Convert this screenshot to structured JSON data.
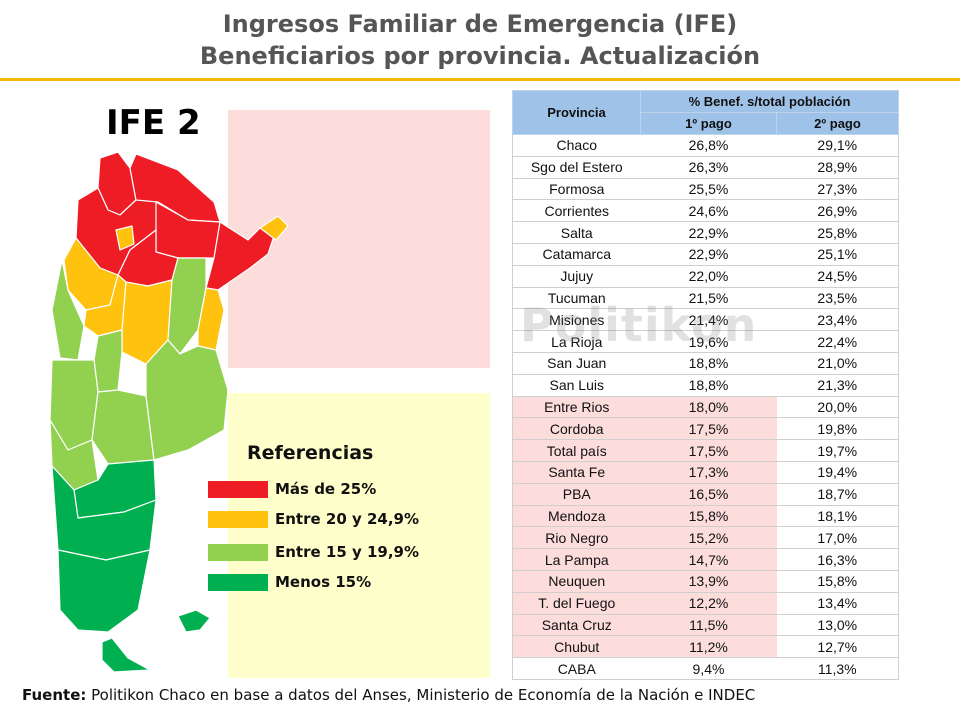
{
  "title": {
    "line1": "Ingresos Familiar de Emergencia (IFE)",
    "line2": "Beneficiarios por provincia. Actualización"
  },
  "map": {
    "label": "IFE 2"
  },
  "watermark": "Politikon",
  "legend": {
    "title": "Referencias",
    "items": [
      {
        "label": "Más de 25%",
        "color": "#ee1c24"
      },
      {
        "label": "Entre 20 y 24,9%",
        "color": "#ffc20e"
      },
      {
        "label": "Entre 15 y 19,9%",
        "color": "#92d050"
      },
      {
        "label": "Menos 15%",
        "color": "#00b050"
      }
    ]
  },
  "colors": {
    "accent_rule": "#f5b800",
    "header_fill": "#9fc3e8",
    "highlight": "#fddcdc"
  },
  "chart_data": {
    "type": "table",
    "columns": {
      "province": "Provincia",
      "group": "% Benef. s/total población",
      "pay1": "1º pago",
      "pay2": "2º pago"
    },
    "rows": [
      {
        "province": "Chaco",
        "pay1": "26,8%",
        "pay2": "29,1%"
      },
      {
        "province": "Sgo del Estero",
        "pay1": "26,3%",
        "pay2": "28,9%"
      },
      {
        "province": "Formosa",
        "pay1": "25,5%",
        "pay2": "27,3%"
      },
      {
        "province": "Corrientes",
        "pay1": "24,6%",
        "pay2": "26,9%"
      },
      {
        "province": "Salta",
        "pay1": "22,9%",
        "pay2": "25,8%"
      },
      {
        "province": "Catamarca",
        "pay1": "22,9%",
        "pay2": "25,1%"
      },
      {
        "province": "Jujuy",
        "pay1": "22,0%",
        "pay2": "24,5%"
      },
      {
        "province": "Tucuman",
        "pay1": "21,5%",
        "pay2": "23,5%"
      },
      {
        "province": "Misiones",
        "pay1": "21,4%",
        "pay2": "23,4%"
      },
      {
        "province": "La Rioja",
        "pay1": "19,6%",
        "pay2": "22,4%"
      },
      {
        "province": "San Juan",
        "pay1": "18,8%",
        "pay2": "21,0%"
      },
      {
        "province": "San Luis",
        "pay1": "18,8%",
        "pay2": "21,3%"
      },
      {
        "province": "Entre Rios",
        "pay1": "18,0%",
        "pay2": "20,0%"
      },
      {
        "province": "Cordoba",
        "pay1": "17,5%",
        "pay2": "19,8%"
      },
      {
        "province": "Total país",
        "pay1": "17,5%",
        "pay2": "19,7%"
      },
      {
        "province": "Santa Fe",
        "pay1": "17,3%",
        "pay2": "19,4%"
      },
      {
        "province": "PBA",
        "pay1": "16,5%",
        "pay2": "18,7%"
      },
      {
        "province": "Mendoza",
        "pay1": "15,8%",
        "pay2": "18,1%"
      },
      {
        "province": "Rio Negro",
        "pay1": "15,2%",
        "pay2": "17,0%"
      },
      {
        "province": "La Pampa",
        "pay1": "14,7%",
        "pay2": "16,3%"
      },
      {
        "province": "Neuquen",
        "pay1": "13,9%",
        "pay2": "15,8%"
      },
      {
        "province": "T. del Fuego",
        "pay1": "12,2%",
        "pay2": "13,4%"
      },
      {
        "province": "Santa Cruz",
        "pay1": "11,5%",
        "pay2": "13,0%"
      },
      {
        "province": "Chubut",
        "pay1": "11,2%",
        "pay2": "12,7%"
      },
      {
        "province": "CABA",
        "pay1": "9,4%",
        "pay2": "11,3%"
      }
    ]
  },
  "source": {
    "label": "Fuente:",
    "text": " Politikon Chaco en base a datos del Anses, Ministerio de Economía de la Nación e INDEC"
  }
}
